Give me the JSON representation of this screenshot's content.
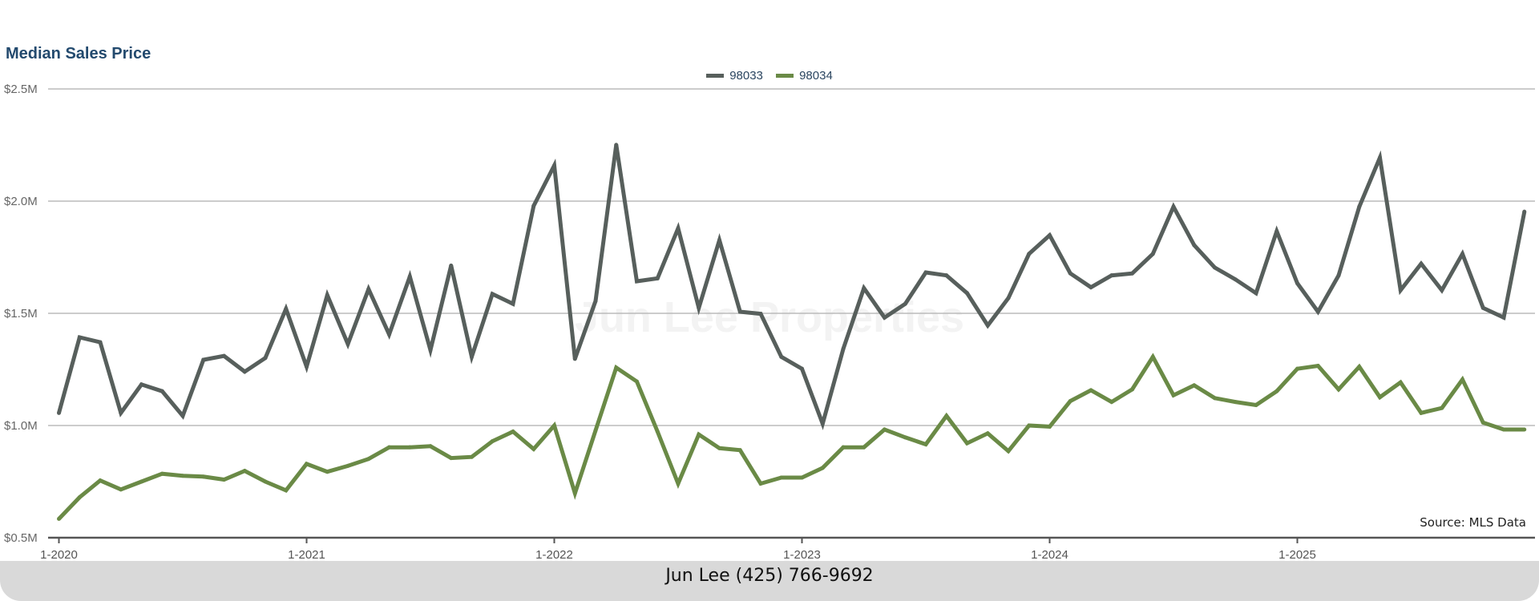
{
  "chart_data": {
    "type": "line",
    "title": "Median Sales Price",
    "source": "Source: MLS Data",
    "watermark": "Jun Lee Properties",
    "x_start": "1-2020",
    "x_frequency": "monthly",
    "x_tick_labels": [
      "1-2020",
      "1-2021",
      "1-2022",
      "1-2023",
      "1-2024",
      "1-2025"
    ],
    "y_tick_labels": [
      "$0.5M",
      "$1.0M",
      "$1.5M",
      "$2.0M",
      "$2.5M"
    ],
    "y_ticks": [
      0.5,
      1.0,
      1.5,
      2.0,
      2.5
    ],
    "ylim": [
      0.5,
      2.5
    ],
    "y_unit": "millions USD",
    "grid": true,
    "legend_position": "top-center",
    "series": [
      {
        "name": "98033",
        "color": "#575f5c",
        "values": [
          1.056,
          1.393,
          1.371,
          1.056,
          1.183,
          1.153,
          1.043,
          1.293,
          1.31,
          1.24,
          1.301,
          1.52,
          1.262,
          1.581,
          1.363,
          1.608,
          1.406,
          1.664,
          1.336,
          1.713,
          1.306,
          1.586,
          1.542,
          1.979,
          2.159,
          1.297,
          1.555,
          2.251,
          1.643,
          1.656,
          1.879,
          1.524,
          1.826,
          1.507,
          1.498,
          1.306,
          1.253,
          1.008,
          1.341,
          1.612,
          1.481,
          1.542,
          1.682,
          1.669,
          1.59,
          1.446,
          1.568,
          1.765,
          1.848,
          1.678,
          1.616,
          1.669,
          1.678,
          1.765,
          1.975,
          1.804,
          1.704,
          1.651,
          1.59,
          1.866,
          1.634,
          1.507,
          1.669,
          1.975,
          2.194,
          1.603,
          1.721,
          1.603,
          1.765,
          1.524,
          1.481,
          1.953
        ]
      },
      {
        "name": "98034",
        "color": "#6a8a46",
        "values": [
          0.584,
          0.68,
          0.755,
          0.715,
          0.75,
          0.785,
          0.776,
          0.772,
          0.759,
          0.798,
          0.75,
          0.711,
          0.829,
          0.794,
          0.82,
          0.851,
          0.903,
          0.903,
          0.908,
          0.855,
          0.86,
          0.93,
          0.973,
          0.895,
          1.0,
          0.698,
          0.978,
          1.258,
          1.196,
          0.973,
          0.741,
          0.96,
          0.899,
          0.89,
          0.741,
          0.768,
          0.768,
          0.811,
          0.903,
          0.903,
          0.982,
          0.947,
          0.916,
          1.043,
          0.921,
          0.965,
          0.886,
          1.0,
          0.995,
          1.109,
          1.157,
          1.105,
          1.161,
          1.306,
          1.135,
          1.179,
          1.122,
          1.105,
          1.091,
          1.153,
          1.253,
          1.266,
          1.161,
          1.262,
          1.126,
          1.192,
          1.056,
          1.078,
          1.205,
          1.013,
          0.982,
          0.982
        ]
      }
    ]
  },
  "footer": {
    "contact": "Jun Lee (425) 766-9692"
  }
}
